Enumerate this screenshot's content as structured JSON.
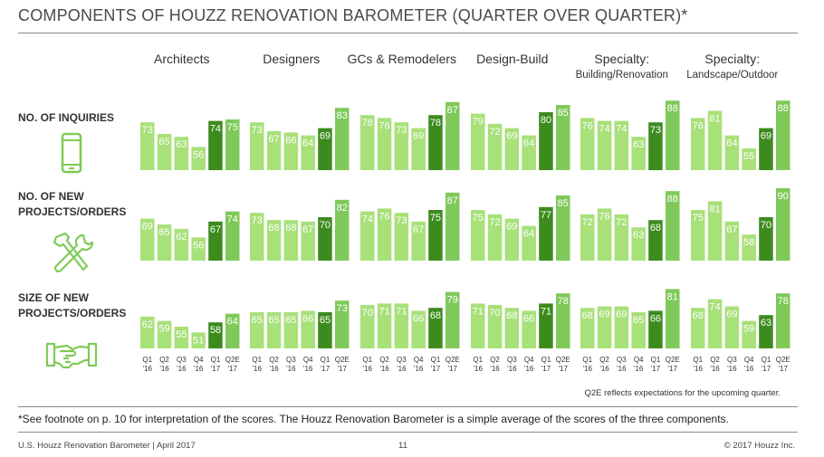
{
  "title": "COMPONENTS OF HOUZZ RENOVATION BAROMETER (QUARTER OVER QUARTER)*",
  "colors": {
    "light": "#a8e07a",
    "medium": "#7fc95a",
    "dark": "#3d8b1e",
    "icon": "#7fcb55"
  },
  "icons": [
    "phone-icon",
    "wrench-hammer-icon",
    "handshake-icon"
  ],
  "note": "Q2E reflects expectations for the upcoming quarter.",
  "footnote": "*See footnote on p. 10 for interpretation of the scores. The Houzz Renovation Barometer is a simple average of the scores of the three components.",
  "footer": {
    "left": "U.S. Houzz Renovation Barometer | April 2017",
    "page": "11",
    "right": "© 2017 Houzz Inc."
  },
  "chart_data": {
    "type": "bar",
    "quarters": [
      {
        "q": "Q1",
        "y": "'16"
      },
      {
        "q": "Q2",
        "y": "'16"
      },
      {
        "q": "Q3",
        "y": "'16"
      },
      {
        "q": "Q4",
        "y": "'16"
      },
      {
        "q": "Q1",
        "y": "'17"
      },
      {
        "q": "Q2E",
        "y": "'17"
      }
    ],
    "groups": [
      {
        "name": "Architects",
        "sub": ""
      },
      {
        "name": "Designers",
        "sub": ""
      },
      {
        "name": "GCs & Remodelers",
        "sub": ""
      },
      {
        "name": "Design-Build",
        "sub": ""
      },
      {
        "name": "Specialty:",
        "sub": "Building/Renovation"
      },
      {
        "name": "Specialty:",
        "sub": "Landscape/Outdoor"
      }
    ],
    "rows": [
      {
        "label": [
          "NO. OF INQUIRIES"
        ],
        "values": [
          [
            73,
            65,
            63,
            56,
            74,
            75
          ],
          [
            73,
            67,
            66,
            64,
            69,
            83
          ],
          [
            78,
            76,
            73,
            69,
            78,
            87
          ],
          [
            79,
            72,
            69,
            64,
            80,
            85
          ],
          [
            76,
            74,
            74,
            63,
            73,
            88
          ],
          [
            76,
            81,
            64,
            55,
            69,
            88
          ]
        ]
      },
      {
        "label": [
          "NO. OF NEW",
          "PROJECTS/ORDERS"
        ],
        "values": [
          [
            69,
            65,
            62,
            56,
            67,
            74
          ],
          [
            73,
            68,
            68,
            67,
            70,
            82
          ],
          [
            74,
            76,
            73,
            67,
            75,
            87
          ],
          [
            75,
            72,
            69,
            64,
            77,
            85
          ],
          [
            72,
            76,
            72,
            63,
            68,
            88
          ],
          [
            75,
            81,
            67,
            58,
            70,
            90
          ]
        ]
      },
      {
        "label": [
          "SIZE OF NEW",
          "PROJECTS/ORDERS"
        ],
        "values": [
          [
            62,
            59,
            55,
            51,
            58,
            64
          ],
          [
            65,
            65,
            65,
            66,
            65,
            73
          ],
          [
            70,
            71,
            71,
            66,
            68,
            79
          ],
          [
            71,
            70,
            68,
            66,
            71,
            78
          ],
          [
            68,
            69,
            69,
            65,
            66,
            81
          ],
          [
            68,
            74,
            69,
            59,
            63,
            78
          ]
        ]
      }
    ]
  }
}
